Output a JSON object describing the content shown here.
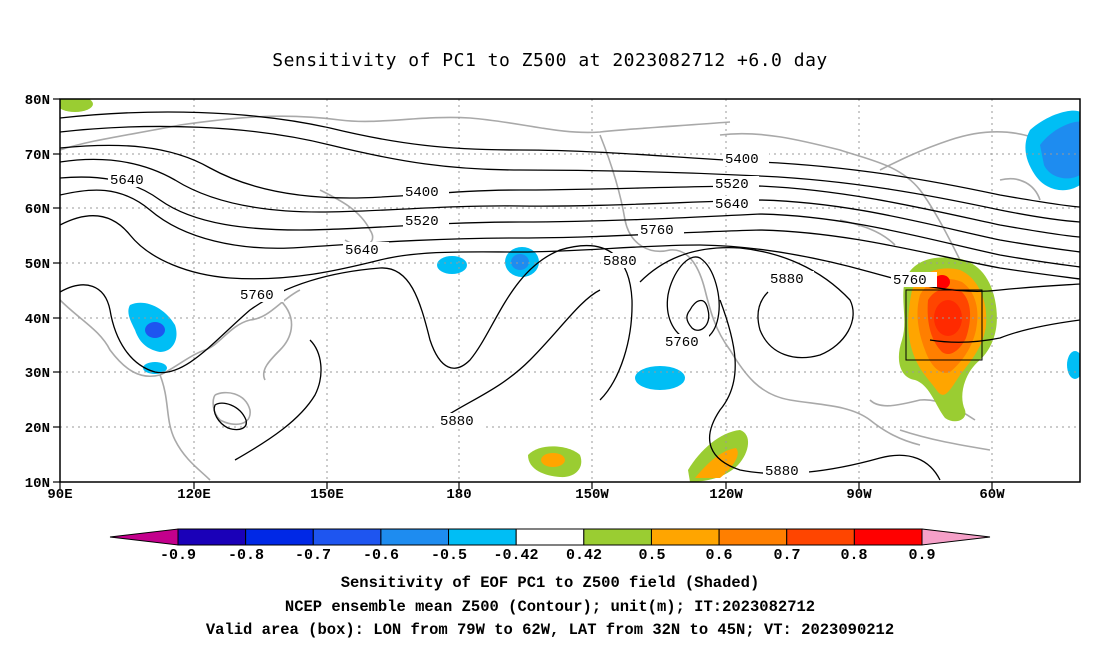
{
  "title": "Sensitivity of PC1 to Z500 at 2023082712 +6.0 day",
  "lat_labels": [
    "80N",
    "70N",
    "60N",
    "50N",
    "40N",
    "30N",
    "20N",
    "10N"
  ],
  "lon_labels": [
    "90E",
    "120E",
    "150E",
    "180",
    "150W",
    "120W",
    "90W",
    "60W"
  ],
  "contour_labels": {
    "c5640a": "5640",
    "c5400a": "5400",
    "c5520a": "5520",
    "c5640b": "5640",
    "c5760a": "5760",
    "c5400b": "5400",
    "c5520b": "5520",
    "c5640c": "5640",
    "c5760b": "5760",
    "c5880a": "5880",
    "c5880b": "5880",
    "c5760c": "5760",
    "c5880c": "5880",
    "c5760d": "5760",
    "c5880d": "5880"
  },
  "colorbar": {
    "labels": [
      "-0.9",
      "-0.8",
      "-0.7",
      "-0.6",
      "-0.5",
      "-0.42",
      "0.42",
      "0.5",
      "0.6",
      "0.7",
      "0.8",
      "0.9"
    ],
    "colors": [
      "#1a00b8",
      "#0028e6",
      "#1e55f0",
      "#1e8cf0",
      "#00bef5",
      "#ffffff",
      "#9acd32",
      "#ffa500",
      "#ff7f00",
      "#ff4500",
      "#ff0000"
    ],
    "low_arrow": "#c3008c",
    "high_arrow": "#f5a0c8"
  },
  "captions": {
    "line1": "Sensitivity of EOF PC1 to Z500 field (Shaded)",
    "line2": "NCEP ensemble mean Z500 (Contour); unit(m); IT:2023082712",
    "line3": "Valid area (box): LON from 79W to 62W, LAT from 32N to 45N; VT: 2023090212"
  }
}
